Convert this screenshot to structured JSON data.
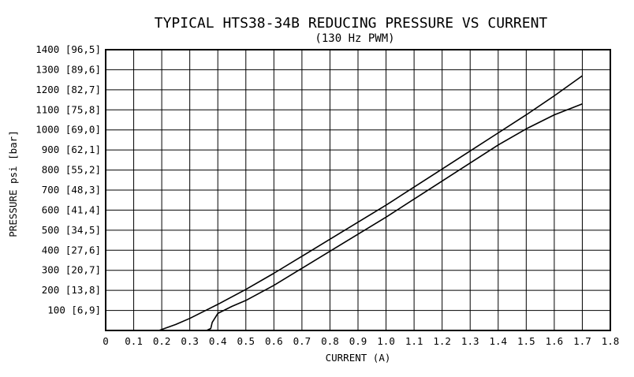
{
  "chart_data": {
    "type": "line",
    "title": "TYPICAL HTS38-34B REDUCING PRESSURE VS CURRENT",
    "subtitle": "(130 Hz PWM)",
    "xlabel": "CURRENT (A)",
    "ylabel": "PRESSURE psi [bar]",
    "xlim": [
      0,
      1.8
    ],
    "ylim": [
      0,
      1400
    ],
    "grid": true,
    "x_ticks": [
      "0",
      "0.1",
      "0.2",
      "0.3",
      "0.4",
      "0.5",
      "0.6",
      "0.7",
      "0.8",
      "0.9",
      "1.0",
      "1.1",
      "1.2",
      "1.3",
      "1.4",
      "1.5",
      "1.6",
      "1.7",
      "1.8"
    ],
    "y_ticks": [
      {
        "value": 100,
        "label": "100 [6,9]"
      },
      {
        "value": 200,
        "label": "200 [13,8]"
      },
      {
        "value": 300,
        "label": "300 [20,7]"
      },
      {
        "value": 400,
        "label": "400 [27,6]"
      },
      {
        "value": 500,
        "label": "500 [34,5]"
      },
      {
        "value": 600,
        "label": "600 [41,4]"
      },
      {
        "value": 700,
        "label": "700 [48,3]"
      },
      {
        "value": 800,
        "label": "800 [55,2]"
      },
      {
        "value": 900,
        "label": "900 [62,1]"
      },
      {
        "value": 1000,
        "label": "1000 [69,0]"
      },
      {
        "value": 1100,
        "label": "1100 [75,8]"
      },
      {
        "value": 1200,
        "label": "1200 [82,7]"
      },
      {
        "value": 1300,
        "label": "1300 [89,6]"
      },
      {
        "value": 1400,
        "label": "1400 [96,5]"
      }
    ],
    "series": [
      {
        "x": [
          0,
          0.15,
          0.19,
          0.25,
          0.3,
          0.35,
          0.4,
          0.5,
          0.6,
          0.7,
          0.8,
          0.9,
          1.0,
          1.1,
          1.2,
          1.3,
          1.4,
          1.5,
          1.6,
          1.7
        ],
        "y": [
          0,
          0,
          0,
          30,
          60,
          95,
          130,
          205,
          285,
          370,
          455,
          540,
          625,
          715,
          805,
          895,
          985,
          1075,
          1170,
          1270
        ]
      },
      {
        "x": [
          0,
          0.3,
          0.36,
          0.375,
          0.38,
          0.4,
          0.45,
          0.5,
          0.6,
          0.7,
          0.8,
          0.9,
          1.0,
          1.1,
          1.2,
          1.3,
          1.4,
          1.5,
          1.6,
          1.7
        ],
        "y": [
          0,
          0,
          0,
          10,
          40,
          85,
          120,
          150,
          225,
          310,
          395,
          480,
          565,
          655,
          745,
          835,
          925,
          1005,
          1075,
          1130
        ]
      }
    ]
  }
}
